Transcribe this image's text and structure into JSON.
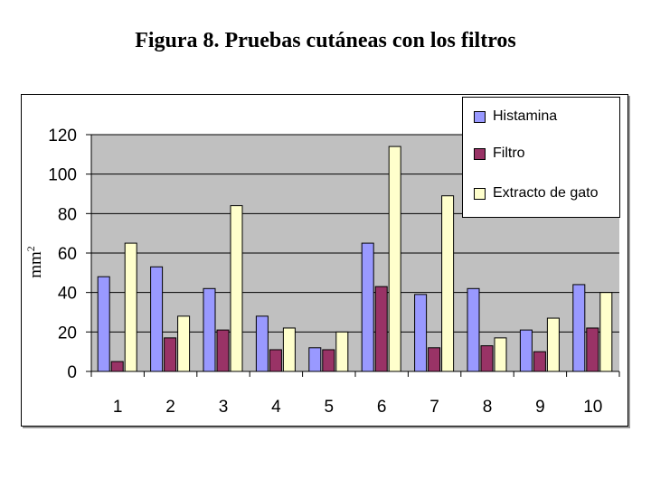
{
  "chart_data": {
    "type": "bar",
    "title": "Figura 8. Pruebas cutáneas con los filtros",
    "ylabel": "mm",
    "ylabel_superscript": "2",
    "xlabel": "",
    "ylim": [
      0,
      120
    ],
    "yticks": [
      0,
      20,
      40,
      60,
      80,
      100,
      120
    ],
    "grid": true,
    "legend_position": "top-right",
    "categories": [
      "1",
      "2",
      "3",
      "4",
      "5",
      "6",
      "7",
      "8",
      "9",
      "10"
    ],
    "series": [
      {
        "name": "Histamina",
        "color": "#9999ff",
        "values": [
          48,
          53,
          42,
          28,
          12,
          65,
          39,
          42,
          21,
          44
        ]
      },
      {
        "name": "Filtro",
        "color": "#993366",
        "values": [
          5,
          17,
          21,
          11,
          11,
          43,
          12,
          13,
          10,
          22
        ]
      },
      {
        "name": "Extracto de gato",
        "color": "#ffffcc",
        "values": [
          65,
          28,
          84,
          22,
          20,
          114,
          89,
          17,
          27,
          40
        ]
      }
    ]
  }
}
